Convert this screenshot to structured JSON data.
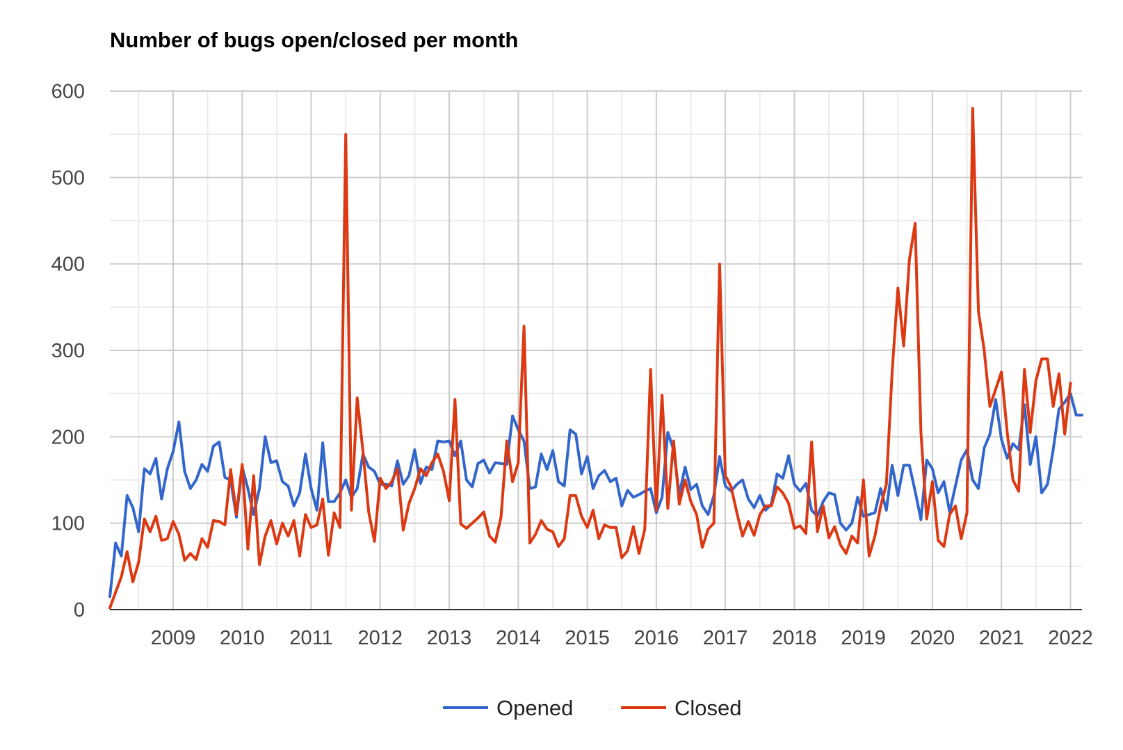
{
  "chart_data": {
    "type": "line",
    "title": "Number of bugs open/closed per month",
    "xlabel": "",
    "ylabel": "",
    "ylim": [
      0,
      600
    ],
    "yticks": [
      0,
      100,
      200,
      300,
      400,
      500,
      600
    ],
    "x_start": "2008-02",
    "x_tick_labels": [
      "2009",
      "2010",
      "2011",
      "2012",
      "2013",
      "2014",
      "2015",
      "2016",
      "2017",
      "2018",
      "2019",
      "2020",
      "2021",
      "2022"
    ],
    "grid": true,
    "legend_position": "bottom",
    "series": [
      {
        "name": "Opened",
        "color": "#3366cc",
        "values": [
          15,
          77,
          62,
          132,
          118,
          90,
          163,
          157,
          175,
          128,
          163,
          183,
          217,
          160,
          140,
          150,
          168,
          160,
          189,
          194,
          153,
          150,
          107,
          165,
          140,
          110,
          140,
          200,
          170,
          172,
          148,
          143,
          120,
          135,
          180,
          140,
          115,
          193,
          125,
          125,
          135,
          150,
          130,
          140,
          180,
          165,
          160,
          145,
          145,
          143,
          172,
          145,
          155,
          185,
          146,
          165,
          162,
          195,
          194,
          195,
          178,
          195,
          150,
          142,
          169,
          173,
          158,
          170,
          169,
          168,
          224,
          208,
          195,
          140,
          142,
          180,
          162,
          184,
          148,
          143,
          208,
          203,
          157,
          177,
          140,
          155,
          161,
          148,
          152,
          120,
          138,
          130,
          133,
          137,
          140,
          112,
          130,
          205,
          185,
          133,
          165,
          139,
          145,
          120,
          110,
          132,
          177,
          143,
          137,
          145,
          150,
          128,
          118,
          132,
          115,
          122,
          157,
          152,
          178,
          145,
          137,
          146,
          115,
          108,
          125,
          135,
          133,
          100,
          92,
          100,
          130,
          108,
          110,
          112,
          140,
          115,
          167,
          132,
          167,
          167,
          137,
          104,
          173,
          163,
          135,
          148,
          113,
          143,
          173,
          185,
          150,
          140,
          187,
          203,
          243,
          197,
          175,
          192,
          185,
          237,
          168,
          200,
          135,
          145,
          185,
          232,
          240,
          250,
          225,
          225
        ]
      },
      {
        "name": "Closed",
        "color": "#dc3912",
        "values": [
          2,
          20,
          38,
          67,
          32,
          55,
          105,
          90,
          108,
          80,
          82,
          102,
          87,
          57,
          65,
          58,
          82,
          72,
          103,
          102,
          98,
          162,
          110,
          168,
          70,
          155,
          52,
          85,
          103,
          76,
          100,
          85,
          103,
          62,
          110,
          95,
          98,
          128,
          63,
          112,
          95,
          550,
          115,
          245,
          183,
          113,
          79,
          152,
          140,
          148,
          163,
          92,
          123,
          140,
          163,
          155,
          170,
          180,
          160,
          126,
          243,
          99,
          94,
          100,
          106,
          113,
          85,
          78,
          107,
          195,
          148,
          170,
          328,
          77,
          87,
          103,
          93,
          90,
          73,
          82,
          132,
          132,
          108,
          95,
          115,
          82,
          98,
          95,
          95,
          60,
          68,
          96,
          65,
          93,
          278,
          115,
          248,
          117,
          195,
          122,
          150,
          125,
          110,
          72,
          93,
          100,
          400,
          155,
          142,
          112,
          85,
          102,
          86,
          110,
          120,
          120,
          142,
          135,
          123,
          94,
          97,
          88,
          194,
          90,
          120,
          83,
          96,
          75,
          65,
          85,
          77,
          150,
          62,
          85,
          120,
          145,
          275,
          372,
          305,
          405,
          447,
          205,
          105,
          148,
          80,
          73,
          110,
          120,
          82,
          112,
          580,
          345,
          300,
          235,
          255,
          275,
          205,
          150,
          137,
          278,
          205,
          265,
          290,
          290,
          235,
          273,
          203,
          262
        ]
      }
    ]
  }
}
